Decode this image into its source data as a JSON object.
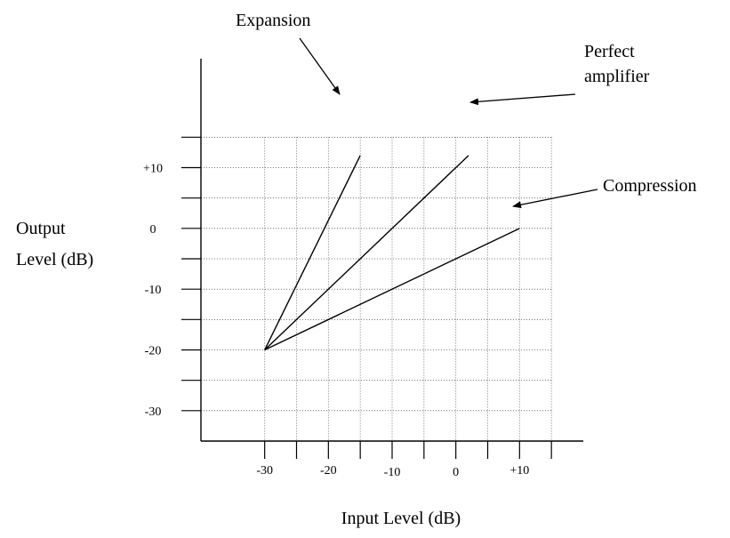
{
  "chart_data": {
    "type": "line",
    "xlabel": "Input Level (dB)",
    "ylabel_lines": [
      "Output",
      "Level (dB)"
    ],
    "x_ticks": [
      {
        "value": -30,
        "label": "-30"
      },
      {
        "value": -20,
        "label": "-20"
      },
      {
        "value": -10,
        "label": "-10"
      },
      {
        "value": 0,
        "label": "0"
      },
      {
        "value": 10,
        "label": "+10"
      }
    ],
    "y_ticks": [
      {
        "value": 10,
        "label": "+10"
      },
      {
        "value": 0,
        "label": "0"
      },
      {
        "value": -10,
        "label": "-10"
      },
      {
        "value": -20,
        "label": "-20"
      },
      {
        "value": -30,
        "label": "-30"
      }
    ],
    "xlim": [
      -40,
      20
    ],
    "ylim": [
      -35,
      25
    ],
    "grid": true,
    "grid_step": 5,
    "series": [
      {
        "name": "Expansion",
        "x": [
          -30,
          -15
        ],
        "y": [
          -20,
          12
        ]
      },
      {
        "name": "Perfect amplifier",
        "x": [
          -30,
          2
        ],
        "y": [
          -20,
          12
        ]
      },
      {
        "name": "Compression",
        "x": [
          -30,
          10
        ],
        "y": [
          -20,
          0
        ]
      }
    ],
    "annotations": [
      {
        "lines": [
          "Expansion"
        ],
        "series": "Expansion"
      },
      {
        "lines": [
          "Perfect",
          "amplifier"
        ],
        "series": "Perfect amplifier"
      },
      {
        "lines": [
          "Compression"
        ],
        "series": "Compression"
      }
    ]
  }
}
